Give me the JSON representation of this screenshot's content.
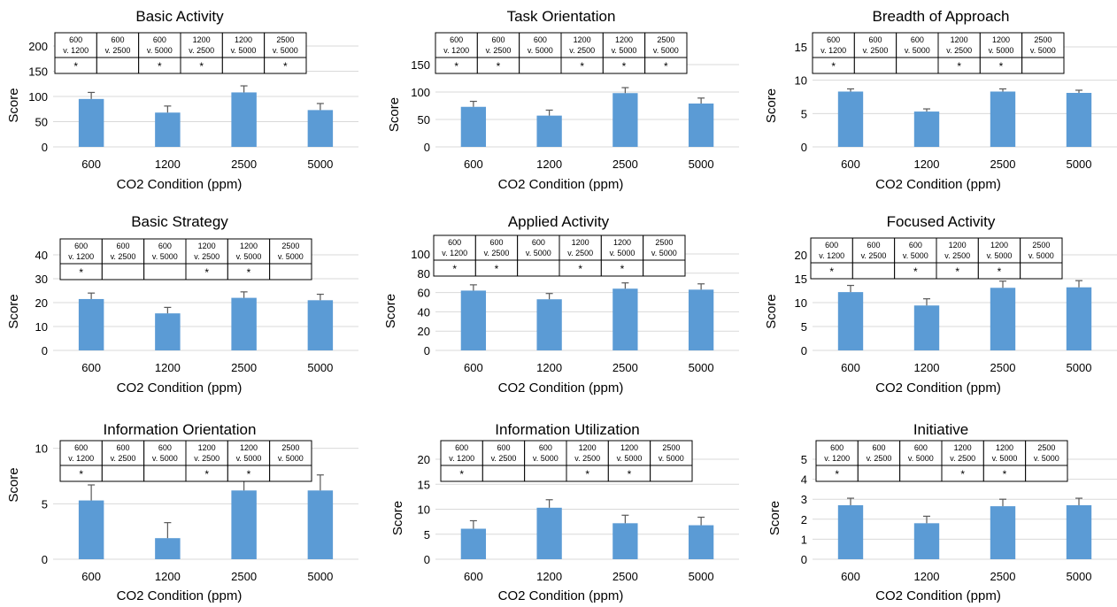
{
  "chart_data": [
    {
      "type": "bar",
      "title": "Basic Activity",
      "xlabel": "CO2 Condition (ppm)",
      "ylabel": "Score",
      "categories": [
        "600",
        "1200",
        "2500",
        "5000"
      ],
      "values": [
        95,
        68,
        108,
        73
      ],
      "errors": [
        13,
        13,
        13,
        13
      ],
      "ylim": [
        0,
        200
      ],
      "yticks": [
        "0",
        "50",
        "100",
        "150",
        "200"
      ],
      "grid": true,
      "comparison_table": {
        "headers": [
          "600\nv. 1200",
          "600\nv. 2500",
          "600\nv. 5000",
          "1200\nv. 2500",
          "1200\nv. 5000",
          "2500\nv. 5000"
        ],
        "marks": [
          "*",
          "",
          "*",
          "*",
          "",
          "*"
        ]
      }
    },
    {
      "type": "bar",
      "title": "Task Orientation",
      "xlabel": "CO2 Condition (ppm)",
      "ylabel": "Score",
      "categories": [
        "600",
        "1200",
        "2500",
        "5000"
      ],
      "values": [
        73,
        57,
        98,
        79
      ],
      "errors": [
        10,
        10,
        10,
        10
      ],
      "ylim": [
        0,
        150
      ],
      "yticks": [
        "0",
        "50",
        "100",
        "150"
      ],
      "grid": true,
      "comparison_table": {
        "headers": [
          "600\nv. 1200",
          "600\nv. 2500",
          "600\nv. 5000",
          "1200\nv. 2500",
          "1200\nv. 5000",
          "2500\nv. 5000"
        ],
        "marks": [
          "*",
          "*",
          "",
          "*",
          "*",
          "*"
        ]
      }
    },
    {
      "type": "bar",
      "title": "Breadth of Approach",
      "xlabel": "CO2 Condition (ppm)",
      "ylabel": "Score",
      "categories": [
        "600",
        "1200",
        "2500",
        "5000"
      ],
      "values": [
        8.3,
        5.3,
        8.3,
        8.1
      ],
      "errors": [
        0.4,
        0.4,
        0.4,
        0.4
      ],
      "ylim": [
        0,
        15
      ],
      "yticks": [
        "0",
        "5",
        "10",
        "15"
      ],
      "grid": true,
      "comparison_table": {
        "headers": [
          "600\nv. 1200",
          "600\nv. 2500",
          "600\nv. 5000",
          "1200\nv. 2500",
          "1200\nv. 5000",
          "2500\nv. 5000"
        ],
        "marks": [
          "*",
          "",
          "",
          "*",
          "*",
          ""
        ]
      }
    },
    {
      "type": "bar",
      "title": "Basic Strategy",
      "xlabel": "CO2 Condition (ppm)",
      "ylabel": "Score",
      "categories": [
        "600",
        "1200",
        "2500",
        "5000"
      ],
      "values": [
        21.5,
        15.5,
        22,
        21
      ],
      "errors": [
        2.5,
        2.5,
        2.5,
        2.5
      ],
      "ylim": [
        0,
        40
      ],
      "yticks": [
        "0",
        "10",
        "20",
        "30",
        "40"
      ],
      "grid": true,
      "comparison_table": {
        "headers": [
          "600\nv. 1200",
          "600\nv. 2500",
          "600\nv. 5000",
          "1200\nv. 2500",
          "1200\nv. 5000",
          "2500\nv. 5000"
        ],
        "marks": [
          "*",
          "",
          "",
          "*",
          "*",
          ""
        ]
      }
    },
    {
      "type": "bar",
      "title": "Applied Activity",
      "xlabel": "CO2 Condition (ppm)",
      "ylabel": "Score",
      "categories": [
        "600",
        "1200",
        "2500",
        "5000"
      ],
      "values": [
        62,
        53,
        64,
        63
      ],
      "errors": [
        6,
        6,
        6,
        6
      ],
      "ylim": [
        0,
        100
      ],
      "yticks": [
        "0",
        "20",
        "40",
        "60",
        "80",
        "100"
      ],
      "grid": true,
      "comparison_table": {
        "headers": [
          "600\nv. 1200",
          "600\nv. 2500",
          "600\nv. 5000",
          "1200\nv. 2500",
          "1200\nv. 5000",
          "2500\nv. 5000"
        ],
        "marks": [
          "*",
          "*",
          "",
          "*",
          "*",
          ""
        ]
      }
    },
    {
      "type": "bar",
      "title": "Focused Activity",
      "xlabel": "CO2 Condition (ppm)",
      "ylabel": "Score",
      "categories": [
        "600",
        "1200",
        "2500",
        "5000"
      ],
      "values": [
        12.2,
        9.4,
        13.1,
        13.2
      ],
      "errors": [
        1.4,
        1.4,
        1.4,
        1.4
      ],
      "ylim": [
        0,
        20
      ],
      "yticks": [
        "0",
        "5",
        "10",
        "15",
        "20"
      ],
      "grid": true,
      "comparison_table": {
        "headers": [
          "600\nv. 1200",
          "600\nv. 2500",
          "600\nv. 5000",
          "1200\nv. 2500",
          "1200\nv. 5000",
          "2500\nv. 5000"
        ],
        "marks": [
          "*",
          "",
          "*",
          "*",
          "*",
          ""
        ]
      }
    },
    {
      "type": "bar",
      "title": "Information Orientation",
      "xlabel": "CO2 Condition (ppm)",
      "ylabel": "Score",
      "categories": [
        "600",
        "1200",
        "2500",
        "5000"
      ],
      "values": [
        5.3,
        1.9,
        6.2,
        6.2
      ],
      "errors": [
        1.4,
        1.4,
        1.4,
        1.4
      ],
      "ylim": [
        0,
        15
      ],
      "yticks": [
        "0",
        "5",
        "10"
      ],
      "grid": true,
      "comparison_table": {
        "headers": [
          "600\nv. 1200",
          "600\nv. 2500",
          "600\nv. 5000",
          "1200\nv. 2500",
          "1200\nv. 5000",
          "2500\nv. 5000"
        ],
        "marks": [
          "*",
          "",
          "",
          "*",
          "*",
          ""
        ]
      }
    },
    {
      "type": "bar",
      "title": "Information Utilization",
      "xlabel": "CO2 Condition (ppm)",
      "ylabel": "Score",
      "categories": [
        "600",
        "1200",
        "2500",
        "5000"
      ],
      "values": [
        6.1,
        10.3,
        7.2,
        6.8
      ],
      "errors": [
        1.6,
        1.6,
        1.6,
        1.6
      ],
      "ylim": [
        0,
        20
      ],
      "yticks": [
        "0",
        "5",
        "10",
        "15",
        "20"
      ],
      "grid": true,
      "comparison_table": {
        "headers": [
          "600\nv. 1200",
          "600\nv. 2500",
          "600\nv. 5000",
          "1200\nv. 2500",
          "1200\nv. 5000",
          "2500\nv. 5000"
        ],
        "marks": [
          "*",
          "",
          "",
          "*",
          "*",
          ""
        ]
      }
    },
    {
      "type": "bar",
      "title": "Initiative",
      "xlabel": "CO2 Condition (ppm)",
      "ylabel": "Score",
      "categories": [
        "600",
        "1200",
        "2500",
        "5000"
      ],
      "values": [
        2.7,
        1.8,
        2.65,
        2.7
      ],
      "errors": [
        0.35,
        0.35,
        0.35,
        0.35
      ],
      "ylim": [
        0,
        5
      ],
      "yticks": [
        "0",
        "1",
        "2",
        "3",
        "4",
        "5"
      ],
      "grid": true,
      "comparison_table": {
        "headers": [
          "600\nv. 1200",
          "600\nv. 2500",
          "600\nv. 5000",
          "1200\nv. 2500",
          "1200\nv. 5000",
          "2500\nv. 5000"
        ],
        "marks": [
          "*",
          "",
          "",
          "*",
          "*",
          ""
        ]
      }
    }
  ]
}
